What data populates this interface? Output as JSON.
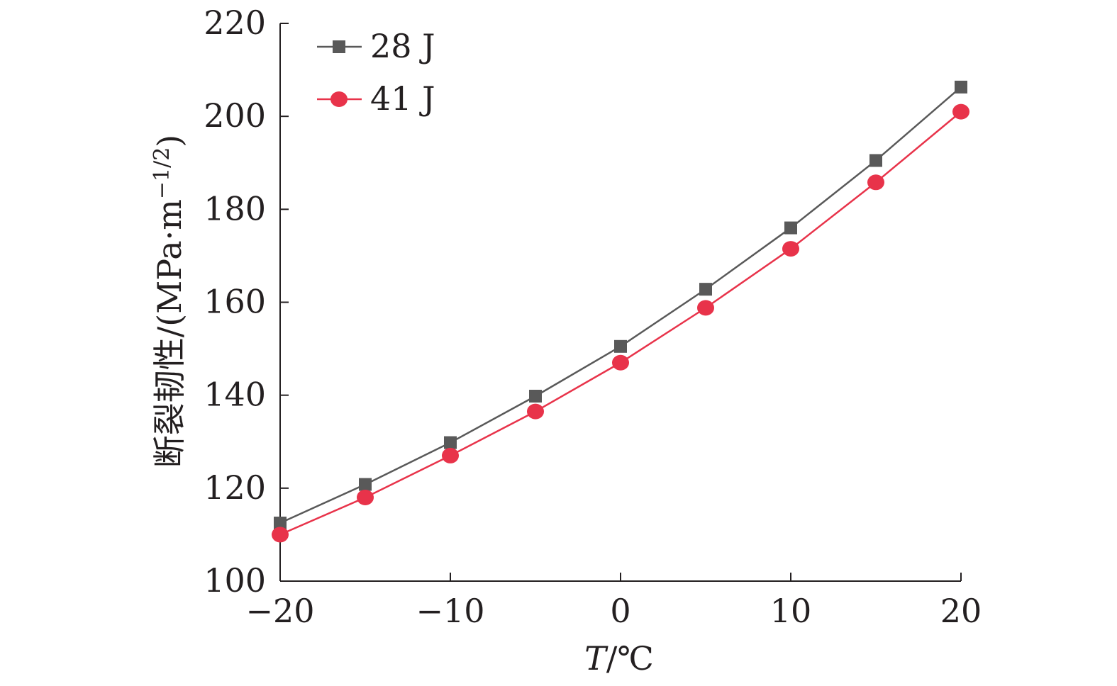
{
  "chart_data": {
    "type": "line",
    "title": "",
    "xlabel": "T/℃",
    "ylabel": "断裂韧性/(MPa·m−1/2)",
    "x": [
      -20,
      -15,
      -10,
      -5,
      0,
      5,
      10,
      15,
      20
    ],
    "xlim": [
      -20,
      20
    ],
    "ylim": [
      100,
      220
    ],
    "x_ticks": [
      "−20",
      "−10",
      "0",
      "10",
      "20"
    ],
    "x_tick_values": [
      -20,
      -10,
      0,
      10,
      20
    ],
    "y_ticks": [
      "100",
      "120",
      "140",
      "160",
      "180",
      "200",
      "220"
    ],
    "y_tick_values": [
      100,
      120,
      140,
      160,
      180,
      200,
      220
    ],
    "grid": false,
    "legend_position": "top-left",
    "series": [
      {
        "name": "28 J",
        "marker": "square",
        "color": "#595959",
        "values": [
          112.5,
          120.8,
          129.8,
          139.8,
          150.5,
          162.8,
          176.0,
          190.5,
          206.3
        ]
      },
      {
        "name": "41 J",
        "marker": "circle",
        "color": "#e8334a",
        "values": [
          110.0,
          118.0,
          127.0,
          136.5,
          147.0,
          158.8,
          171.5,
          185.8,
          201.0
        ]
      }
    ]
  }
}
